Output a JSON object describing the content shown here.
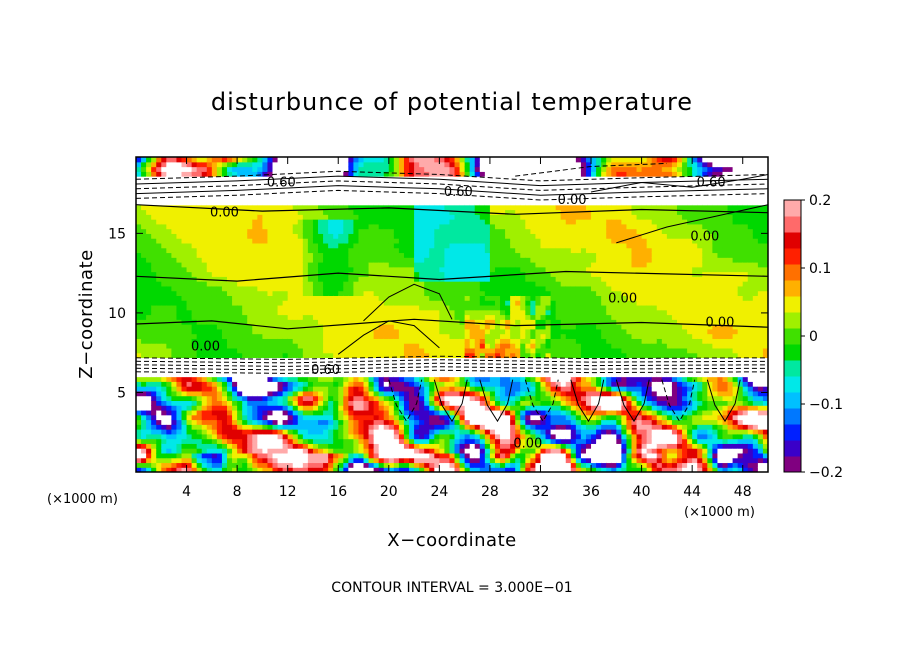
{
  "chart_data": {
    "type": "heatmap",
    "title": "disturbunce of potential temperature",
    "xlabel": "X−coordinate",
    "ylabel": "Z−coordinate",
    "x_unit": "(×1000 m)",
    "y_unit": "(×1000 m)",
    "xlim": [
      0,
      50
    ],
    "ylim": [
      0,
      19.8
    ],
    "x_ticks": [
      4,
      8,
      12,
      16,
      20,
      24,
      28,
      32,
      36,
      40,
      44,
      48
    ],
    "x_tick_labels": [
      "4",
      "8",
      "12",
      "16",
      "20",
      "24",
      "28",
      "32",
      "36",
      "40",
      "44",
      "48"
    ],
    "y_ticks": [
      5,
      10,
      15
    ],
    "y_tick_labels": [
      "5",
      "10",
      "15"
    ],
    "colorbar": {
      "range": [
        -0.2,
        0.2
      ],
      "tick_values": [
        0.2,
        0.1,
        0,
        -0.1,
        -0.2
      ],
      "tick_labels": [
        "0.2",
        "0.1",
        "0",
        "−0.1",
        "−0.2"
      ],
      "colors": [
        "#800080",
        "#3a00c8",
        "#0020ff",
        "#0078ff",
        "#00c0ff",
        "#00e8e8",
        "#00e8a0",
        "#00d800",
        "#40e000",
        "#a0f000",
        "#f0f000",
        "#ffb000",
        "#ff7000",
        "#ff2000",
        "#e00000",
        "#ff6a6a",
        "#ffaaaa"
      ]
    },
    "contour_interval_label": "CONTOUR INTERVAL = 3.000E−01",
    "contour_labels": [
      "0.60",
      "0.60",
      "0.60",
      "0.00",
      "0.00",
      "0.00",
      "0.00",
      "0.00",
      "0.00",
      "0.60",
      "0.00"
    ]
  }
}
